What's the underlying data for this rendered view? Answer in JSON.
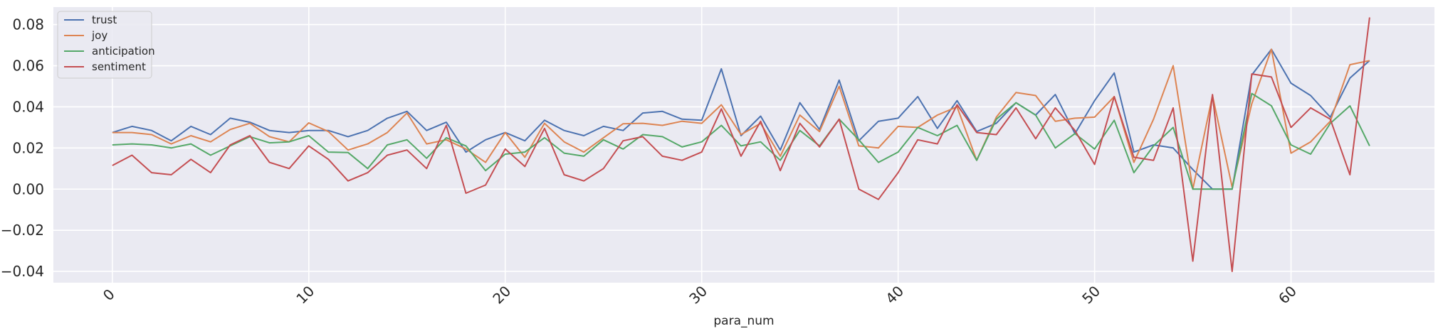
{
  "chart_data": {
    "type": "line",
    "xlabel": "para_num",
    "ylabel": "",
    "title": "",
    "xlim": [
      -3,
      67.3
    ],
    "ylim": [
      -0.0455,
      0.0885
    ],
    "xticks": [
      0,
      10,
      20,
      30,
      40,
      50,
      60
    ],
    "yticks": [
      -0.04,
      -0.02,
      0.0,
      0.02,
      0.04,
      0.06,
      0.08
    ],
    "ytick_labels": [
      "−0.04",
      "−0.02",
      "0.00",
      "0.02",
      "0.04",
      "0.06",
      "0.08"
    ],
    "grid": true,
    "legend_position": "top-left",
    "background": "#eaeaf2",
    "x": [
      0,
      1,
      2,
      3,
      4,
      5,
      6,
      7,
      8,
      9,
      10,
      11,
      12,
      13,
      14,
      15,
      16,
      17,
      18,
      19,
      20,
      21,
      22,
      23,
      24,
      25,
      26,
      27,
      28,
      29,
      30,
      31,
      32,
      33,
      34,
      35,
      36,
      37,
      38,
      39,
      40,
      41,
      42,
      43,
      44,
      45,
      46,
      47,
      48,
      49,
      50,
      51,
      52,
      53,
      54,
      55,
      56,
      57,
      58,
      59,
      60,
      61,
      62,
      63,
      64
    ],
    "series": [
      {
        "name": "trust",
        "color": "#4c72b0",
        "values": [
          0.0275,
          0.0305,
          0.0285,
          0.0235,
          0.0305,
          0.0265,
          0.0345,
          0.0325,
          0.0285,
          0.0275,
          0.0285,
          0.0285,
          0.0255,
          0.0285,
          0.0345,
          0.0378,
          0.0285,
          0.0325,
          0.018,
          0.024,
          0.0275,
          0.0235,
          0.0335,
          0.0285,
          0.026,
          0.0305,
          0.0285,
          0.037,
          0.0378,
          0.034,
          0.0335,
          0.0585,
          0.026,
          0.0355,
          0.019,
          0.042,
          0.029,
          0.053,
          0.0235,
          0.033,
          0.0345,
          0.045,
          0.0295,
          0.043,
          0.028,
          0.032,
          0.042,
          0.036,
          0.046,
          0.027,
          0.043,
          0.0565,
          0.018,
          0.0215,
          0.02,
          0.0095,
          0.0,
          0.0,
          0.0555,
          0.068,
          0.0515,
          0.0455,
          0.035,
          0.054,
          0.0625
        ]
      },
      {
        "name": "joy",
        "color": "#dd8452",
        "values": [
          0.0275,
          0.0275,
          0.0265,
          0.022,
          0.026,
          0.023,
          0.029,
          0.032,
          0.0255,
          0.023,
          0.0322,
          0.028,
          0.019,
          0.022,
          0.0275,
          0.037,
          0.022,
          0.024,
          0.0195,
          0.013,
          0.0275,
          0.0155,
          0.032,
          0.023,
          0.018,
          0.025,
          0.0318,
          0.032,
          0.031,
          0.033,
          0.032,
          0.041,
          0.0265,
          0.032,
          0.016,
          0.036,
          0.028,
          0.05,
          0.021,
          0.02,
          0.0305,
          0.03,
          0.036,
          0.04,
          0.014,
          0.035,
          0.047,
          0.0455,
          0.033,
          0.0345,
          0.035,
          0.045,
          0.013,
          0.034,
          0.06,
          0.0,
          0.0455,
          0.001,
          0.0415,
          0.068,
          0.0175,
          0.023,
          0.033,
          0.0605,
          0.0625
        ]
      },
      {
        "name": "anticipation",
        "color": "#55a868",
        "values": [
          0.0215,
          0.022,
          0.0215,
          0.02,
          0.022,
          0.0165,
          0.021,
          0.0255,
          0.0225,
          0.023,
          0.026,
          0.018,
          0.0178,
          0.01,
          0.0215,
          0.024,
          0.015,
          0.025,
          0.021,
          0.009,
          0.017,
          0.018,
          0.025,
          0.0175,
          0.016,
          0.024,
          0.0195,
          0.0265,
          0.0255,
          0.0205,
          0.023,
          0.031,
          0.021,
          0.023,
          0.014,
          0.0285,
          0.021,
          0.034,
          0.024,
          0.013,
          0.018,
          0.03,
          0.026,
          0.031,
          0.014,
          0.034,
          0.042,
          0.036,
          0.02,
          0.027,
          0.0195,
          0.0335,
          0.008,
          0.021,
          0.03,
          0.0,
          0.0,
          0.0,
          0.0465,
          0.0405,
          0.0215,
          0.017,
          0.032,
          0.0405,
          0.021
        ]
      },
      {
        "name": "sentiment",
        "color": "#c44e52",
        "values": [
          0.0115,
          0.0165,
          0.008,
          0.007,
          0.0145,
          0.008,
          0.0215,
          0.026,
          0.013,
          0.01,
          0.021,
          0.0145,
          0.004,
          0.008,
          0.0165,
          0.019,
          0.01,
          0.031,
          -0.002,
          0.002,
          0.0195,
          0.011,
          0.0295,
          0.007,
          0.004,
          0.01,
          0.0235,
          0.0255,
          0.016,
          0.014,
          0.018,
          0.039,
          0.016,
          0.033,
          0.009,
          0.032,
          0.0205,
          0.034,
          0.0,
          -0.005,
          0.008,
          0.024,
          0.022,
          0.041,
          0.0275,
          0.0265,
          0.0395,
          0.0245,
          0.0395,
          0.0285,
          0.012,
          0.045,
          0.0155,
          0.014,
          0.0395,
          -0.035,
          0.046,
          -0.04,
          0.056,
          0.0545,
          0.03,
          0.0395,
          0.034,
          0.007,
          0.0835
        ]
      }
    ]
  }
}
